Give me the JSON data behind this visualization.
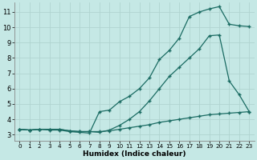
{
  "xlabel": "Humidex (Indice chaleur)",
  "background_color": "#c5e8e5",
  "grid_color": "#b0d4d0",
  "line_color": "#1a6b62",
  "xlim": [
    -0.5,
    23.5
  ],
  "ylim": [
    2.6,
    11.6
  ],
  "yticks": [
    3,
    4,
    5,
    6,
    7,
    8,
    9,
    10,
    11
  ],
  "xticks": [
    0,
    1,
    2,
    3,
    4,
    5,
    6,
    7,
    8,
    9,
    10,
    11,
    12,
    13,
    14,
    15,
    16,
    17,
    18,
    19,
    20,
    21,
    22,
    23
  ],
  "line1_x": [
    0,
    1,
    2,
    3,
    4,
    5,
    6,
    7,
    8,
    9,
    10,
    11,
    12,
    13,
    14,
    15,
    16,
    17,
    18,
    19,
    20,
    21,
    22,
    23
  ],
  "line1_y": [
    3.35,
    3.3,
    3.35,
    3.35,
    3.35,
    3.25,
    3.2,
    3.2,
    3.2,
    3.25,
    3.35,
    3.45,
    3.55,
    3.65,
    3.8,
    3.9,
    4.0,
    4.1,
    4.2,
    4.3,
    4.35,
    4.4,
    4.45,
    4.5
  ],
  "line2_x": [
    0,
    1,
    2,
    3,
    4,
    5,
    6,
    7,
    8,
    9,
    10,
    11,
    12,
    13,
    14,
    15,
    16,
    17,
    18,
    19,
    20,
    21,
    22,
    23
  ],
  "line2_y": [
    3.35,
    3.3,
    3.35,
    3.3,
    3.3,
    3.2,
    3.15,
    3.1,
    4.5,
    4.6,
    5.15,
    5.5,
    6.0,
    6.7,
    7.9,
    8.5,
    9.3,
    10.7,
    11.0,
    11.2,
    11.35,
    10.2,
    10.1,
    10.05
  ],
  "line3_x": [
    0,
    1,
    2,
    3,
    4,
    5,
    6,
    7,
    8,
    9,
    10,
    11,
    12,
    13,
    14,
    15,
    16,
    17,
    18,
    19,
    20,
    21,
    22,
    23
  ],
  "line3_y": [
    3.35,
    3.3,
    3.35,
    3.35,
    3.35,
    3.25,
    3.2,
    3.2,
    3.15,
    3.3,
    3.6,
    4.0,
    4.5,
    5.2,
    6.0,
    6.8,
    7.4,
    8.0,
    8.6,
    9.45,
    9.5,
    6.5,
    5.6,
    4.5
  ]
}
